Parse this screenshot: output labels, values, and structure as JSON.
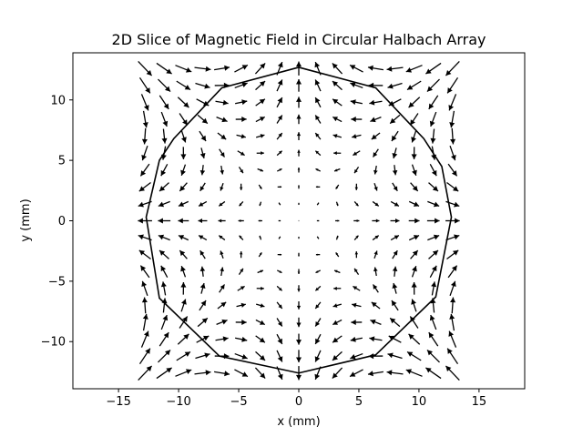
{
  "chart_data": {
    "type": "quiver",
    "title": "2D Slice of Magnetic Field in Circular Halbach Array",
    "xlabel": "x (mm)",
    "ylabel": "y (mm)",
    "xlim": [
      -18.8,
      18.8
    ],
    "ylim": [
      -13.9,
      13.9
    ],
    "xticks": [
      -15,
      -10,
      -5,
      0,
      5,
      10,
      15
    ],
    "xtick_labels": [
      "−15",
      "−10",
      "−5",
      "0",
      "5",
      "10",
      "15"
    ],
    "yticks": [
      -10,
      -5,
      0,
      5,
      10
    ],
    "ytick_labels": [
      "−10",
      "−5",
      "0",
      "5",
      "10"
    ],
    "grid": false,
    "quiver_grid": {
      "x_range": [
        -12.8,
        12.8
      ],
      "y_range": [
        -12.6,
        12.6
      ],
      "nx": 17,
      "ny": 19,
      "field_model": "quadrupole Halbach: direction (cos 3θ, -sin 3θ), magnitude grows with radius"
    },
    "outline": [
      [
        0.0,
        12.7
      ],
      [
        6.4,
        11.0
      ],
      [
        10.4,
        6.8
      ],
      [
        11.9,
        4.5
      ],
      [
        12.7,
        0.3
      ],
      [
        11.4,
        -6.3
      ],
      [
        6.4,
        -11.1
      ],
      [
        0.0,
        -12.6
      ],
      [
        -6.6,
        -11.2
      ],
      [
        -11.6,
        -6.4
      ],
      [
        -12.7,
        0.3
      ],
      [
        -11.6,
        5.0
      ],
      [
        -10.4,
        6.8
      ],
      [
        -6.4,
        11.0
      ],
      [
        0.0,
        12.7
      ]
    ],
    "colors": {
      "arrows": "#000000",
      "outline": "#000000",
      "axes": "#000000"
    }
  }
}
